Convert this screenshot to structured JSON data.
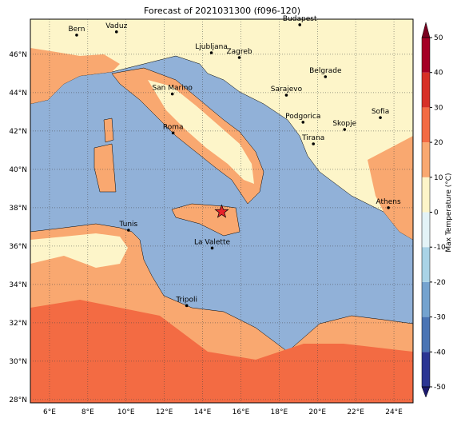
{
  "map": {
    "title": "Forecast of 2021031300 (f096-120)",
    "lonlim": [
      5,
      25
    ],
    "latlim": [
      27.83,
      47.83
    ],
    "lonticks": [
      {
        "value": 6,
        "label": "6°E"
      },
      {
        "value": 8,
        "label": "8°E"
      },
      {
        "value": 10,
        "label": "10°E"
      },
      {
        "value": 12,
        "label": "12°E"
      },
      {
        "value": 14,
        "label": "14°E"
      },
      {
        "value": 16,
        "label": "16°E"
      },
      {
        "value": 18,
        "label": "18°E"
      },
      {
        "value": 20,
        "label": "20°E"
      },
      {
        "value": 22,
        "label": "22°E"
      },
      {
        "value": 24,
        "label": "24°E"
      }
    ],
    "latticks": [
      {
        "value": 28,
        "label": "28°N"
      },
      {
        "value": 30,
        "label": "30°N"
      },
      {
        "value": 32,
        "label": "32°N"
      },
      {
        "value": 34,
        "label": "34°N"
      },
      {
        "value": 36,
        "label": "36°N"
      },
      {
        "value": 38,
        "label": "38°N"
      },
      {
        "value": 40,
        "label": "40°N"
      },
      {
        "value": 42,
        "label": "42°N"
      },
      {
        "value": 44,
        "label": "44°N"
      },
      {
        "value": 46,
        "label": "46°N"
      }
    ],
    "grid": true,
    "cities": [
      {
        "name": "Bern",
        "lon": 7.42,
        "lat": 47.0
      },
      {
        "name": "Vaduz",
        "lon": 9.5,
        "lat": 47.17
      },
      {
        "name": "Budapest",
        "lon": 19.08,
        "lat": 47.54
      },
      {
        "name": "Ljubljana",
        "lon": 14.46,
        "lat": 46.08
      },
      {
        "name": "Zagreb",
        "lon": 15.92,
        "lat": 45.83
      },
      {
        "name": "Belgrade",
        "lon": 20.42,
        "lat": 44.83
      },
      {
        "name": "Sarajevo",
        "lon": 18.38,
        "lat": 43.87
      },
      {
        "name": "San Marino",
        "lon": 12.42,
        "lat": 43.93
      },
      {
        "name": "Sofia",
        "lon": 23.29,
        "lat": 42.7
      },
      {
        "name": "Podgorica",
        "lon": 19.25,
        "lat": 42.46
      },
      {
        "name": "Skopje",
        "lon": 21.42,
        "lat": 42.08
      },
      {
        "name": "Roma",
        "lon": 12.46,
        "lat": 41.9
      },
      {
        "name": "Tirana",
        "lon": 19.79,
        "lat": 41.33
      },
      {
        "name": "Athens",
        "lon": 23.71,
        "lat": 38.0
      },
      {
        "name": "Tunis",
        "lon": 10.13,
        "lat": 36.83
      },
      {
        "name": "La Valette",
        "lon": 14.5,
        "lat": 35.9
      },
      {
        "name": "Tripoli",
        "lon": 13.17,
        "lat": 32.9
      }
    ],
    "marker": {
      "lon": 15.0,
      "lat": 37.79,
      "color": "#e8222a"
    },
    "colorbar": {
      "label": "Max Temperature (°C)",
      "ticks": [
        -50,
        -40,
        -30,
        -20,
        -10,
        0,
        10,
        20,
        30,
        40,
        50
      ],
      "colors": [
        "#2b3593",
        "#4a74b4",
        "#74a3cf",
        "#a9d3e6",
        "#e3f3f7",
        "#fdf5c9",
        "#f9a870",
        "#f36b43",
        "#d73027",
        "#a50026"
      ],
      "extend_colors": [
        "#1c1a6e",
        "#7a0020"
      ]
    }
  }
}
